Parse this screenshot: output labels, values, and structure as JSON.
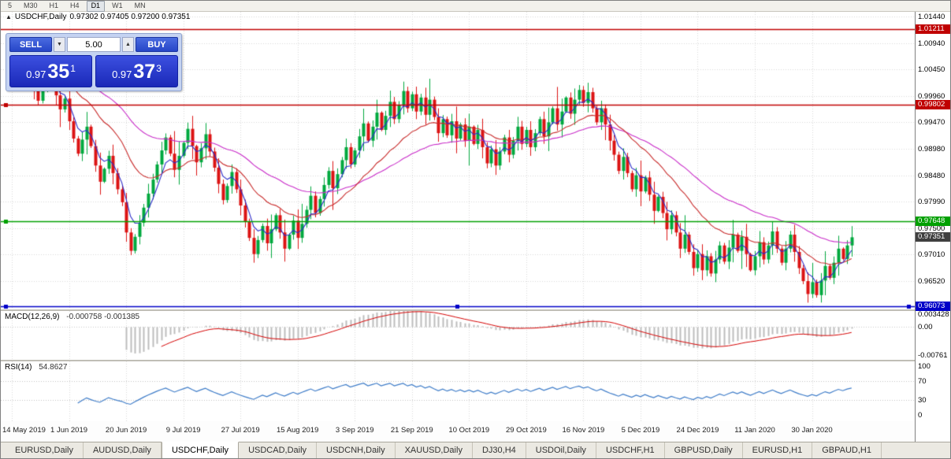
{
  "toolbar": {
    "timeframes": [
      "5",
      "M30",
      "H1",
      "H4",
      "D1",
      "W1",
      "MN"
    ],
    "active": "D1"
  },
  "chart": {
    "collapse_icon": "▲",
    "symbol_label": "USDCHF,Daily",
    "ohlc_label": "0.97302 0.97405 0.97200 0.97351"
  },
  "trade_panel": {
    "sell_label": "SELL",
    "buy_label": "BUY",
    "volume": "5.00",
    "spin_down_icon": "▼",
    "spin_up_icon": "▲",
    "sell_price_prefix": "0.97",
    "sell_price_big": "35",
    "sell_price_sup": "1",
    "buy_price_prefix": "0.97",
    "buy_price_big": "37",
    "buy_price_sup": "3"
  },
  "price_axis": {
    "ticks": [
      "1.01440",
      "1.00940",
      "1.00450",
      "0.99960",
      "0.99470",
      "0.98980",
      "0.98480",
      "0.97990",
      "0.97500",
      "0.97010",
      "0.96520"
    ],
    "levels": [
      {
        "price": "1.01211",
        "color": "#C00000",
        "handles": "none"
      },
      {
        "price": "0.99802",
        "color": "#C00000",
        "handles": "left"
      },
      {
        "price": "0.97648",
        "color": "#00A000",
        "handles": "left"
      },
      {
        "price": "0.96073",
        "color": "#0000C8",
        "handles": "full"
      }
    ],
    "current_price": {
      "value": "0.97351",
      "bg": "#3F3F3F"
    }
  },
  "macd_panel": {
    "label": "MACD(12,26,9)",
    "values": "-0.000758 -0.001385",
    "scale": [
      "0.003428",
      "0.00",
      "-0.00761"
    ]
  },
  "rsi_panel": {
    "label": "RSI(14)",
    "value": "54.8627",
    "scale": [
      "100",
      "70",
      "30",
      "0"
    ]
  },
  "x_axis": {
    "labels": [
      "14 May 2019",
      "1 Jun 2019",
      "20 Jun 2019",
      "9 Jul 2019",
      "27 Jul 2019",
      "15 Aug 2019",
      "3 Sep 2019",
      "21 Sep 2019",
      "10 Oct 2019",
      "29 Oct 2019",
      "16 Nov 2019",
      "5 Dec 2019",
      "24 Dec 2019",
      "11 Jan 2020",
      "30 Jan 2020"
    ]
  },
  "tabs": {
    "items": [
      "EURUSD,Daily",
      "AUDUSD,Daily",
      "USDCHF,Daily",
      "USDCAD,Daily",
      "USDCNH,Daily",
      "XAUUSD,Daily",
      "DJ30,H4",
      "USDOil,Daily",
      "USDCHF,H1",
      "GBPUSD,Daily",
      "EURUSD,H1",
      "GBPAUD,H1"
    ],
    "active": "USDCHF,Daily"
  },
  "chart_data": {
    "type": "candlestick",
    "symbol": "USDCHF",
    "timeframe": "Daily",
    "open": 0.97302,
    "high": 0.97405,
    "low": 0.972,
    "close": 0.97351,
    "bid": 0.97351,
    "ask": 0.97373,
    "y_ticks": [
      1.0144,
      1.0094,
      1.0045,
      0.9996,
      0.9947,
      0.9898,
      0.9848,
      0.9799,
      0.975,
      0.9701,
      0.9652
    ],
    "levels": [
      1.01211,
      0.99802,
      0.97648,
      0.96073
    ],
    "ma_periods": {
      "fast": 5,
      "mid": 20,
      "slow": 45
    },
    "macd": {
      "fast": 12,
      "slow": 26,
      "signal": 9,
      "last_main": -0.000758,
      "last_signal": -0.001385
    },
    "rsi": {
      "period": 14,
      "last": 54.8627
    },
    "closes": [
      1.0075,
      1.006,
      1.0042,
      1.0055,
      1.0035,
      1.0008,
      0.9988,
      1.0018,
      1.0042,
      1.0028,
      0.9998,
      0.9972,
      0.9992,
      0.995,
      0.9918,
      0.989,
      0.9916,
      0.994,
      0.9904,
      0.9868,
      0.9838,
      0.9862,
      0.9886,
      0.9854,
      0.9824,
      0.98,
      0.9744,
      0.971,
      0.9736,
      0.9762,
      0.979,
      0.9816,
      0.9842,
      0.987,
      0.9896,
      0.992,
      0.989,
      0.986,
      0.9886,
      0.991,
      0.9936,
      0.9904,
      0.9874,
      0.99,
      0.9926,
      0.9894,
      0.9864,
      0.9834,
      0.9804,
      0.983,
      0.9856,
      0.9824,
      0.9794,
      0.9764,
      0.9734,
      0.9704,
      0.973,
      0.9756,
      0.9724,
      0.975,
      0.9776,
      0.9744,
      0.9714,
      0.974,
      0.9766,
      0.9734,
      0.976,
      0.9786,
      0.9812,
      0.978,
      0.9806,
      0.9832,
      0.9858,
      0.9826,
      0.9852,
      0.9878,
      0.9902,
      0.987,
      0.9896,
      0.9922,
      0.9946,
      0.9914,
      0.994,
      0.9966,
      0.9934,
      0.996,
      0.9986,
      0.9954,
      0.998,
      1.0006,
      0.9974,
      1.0,
      0.9968,
      0.9994,
      0.9962,
      0.999,
      0.9958,
      0.9928,
      0.9954,
      0.9924,
      0.995,
      0.9918,
      0.9944,
      0.9914,
      0.994,
      0.9908,
      0.9934,
      0.9902,
      0.9872,
      0.9898,
      0.9868,
      0.9894,
      0.992,
      0.9888,
      0.9914,
      0.994,
      0.9908,
      0.9934,
      0.9902,
      0.9928,
      0.9954,
      0.9922,
      0.9948,
      0.9974,
      0.9944,
      0.9968,
      0.9994,
      0.9964,
      0.999,
      1.0008,
      0.9984,
      1.0004,
      0.9974,
      0.9948,
      0.9974,
      0.9944,
      0.9914,
      0.9888,
      0.9858,
      0.9884,
      0.9854,
      0.9824,
      0.985,
      0.982,
      0.9846,
      0.9814,
      0.9784,
      0.981,
      0.978,
      0.975,
      0.9776,
      0.9744,
      0.9714,
      0.974,
      0.9708,
      0.9678,
      0.9704,
      0.9674,
      0.97,
      0.9668,
      0.9694,
      0.972,
      0.969,
      0.9716,
      0.974,
      0.971,
      0.9736,
      0.9704,
      0.9674,
      0.97,
      0.9726,
      0.9694,
      0.972,
      0.9746,
      0.9714,
      0.9688,
      0.9714,
      0.974,
      0.9708,
      0.9678,
      0.9654,
      0.963,
      0.9652,
      0.9628,
      0.9655,
      0.9682,
      0.966,
      0.9688,
      0.9714,
      0.9695,
      0.972,
      0.97351
    ]
  },
  "colors": {
    "up": "#00A83E",
    "down": "#DC1414",
    "grid": "#D8D8D8",
    "ma_fast": "#2B2BC8",
    "ma_mid": "#C82B2B",
    "ma_slow": "#C82BC8",
    "macd_hist": "#BDBDBD",
    "macd_signal": "#D40000",
    "rsi_line": "#3E7CC8",
    "rsi_levels": "#C0C0C0"
  }
}
